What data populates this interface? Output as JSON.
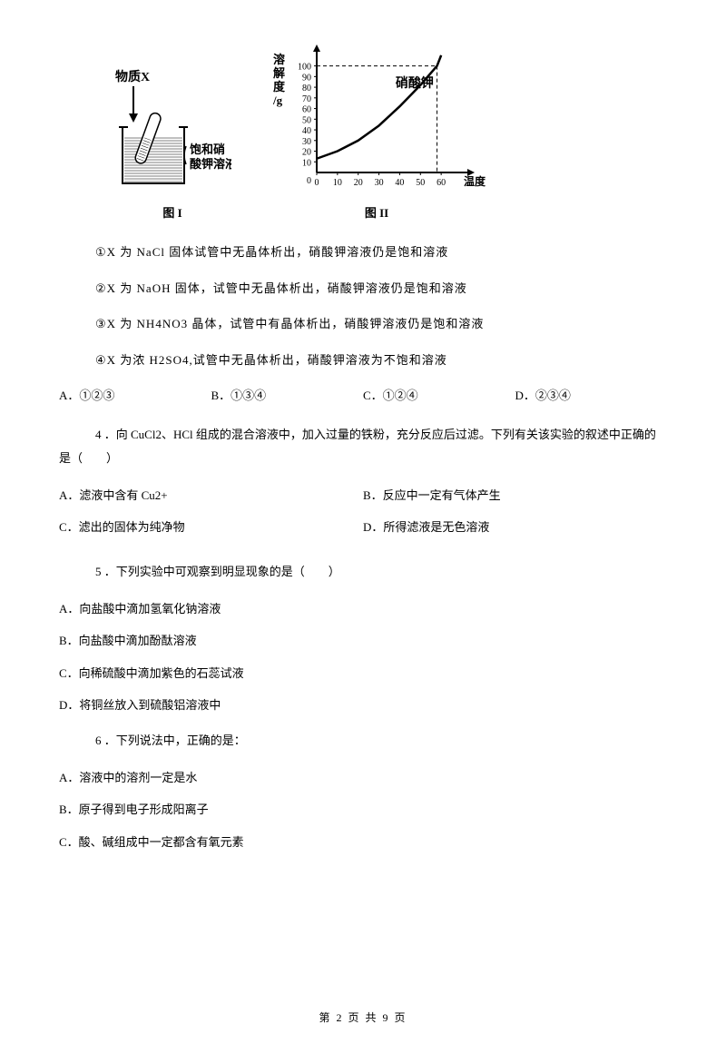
{
  "figure1": {
    "label_wuzhix": "物质X",
    "label_solution": "饱和硝酸钾溶液",
    "caption": "图 I",
    "colors": {
      "stroke": "#000000",
      "solution_fill": "#888888"
    }
  },
  "figure2": {
    "y_label_lines": [
      "溶",
      "解",
      "度",
      "/g"
    ],
    "x_label": "温度/℃",
    "curve_label": "硝酸钾",
    "caption": "图 II",
    "x_ticks": [
      0,
      10,
      20,
      30,
      40,
      50,
      60
    ],
    "y_ticks": [
      10,
      20,
      30,
      40,
      50,
      60,
      70,
      80,
      90,
      100
    ],
    "curve_points": [
      [
        0,
        13
      ],
      [
        10,
        20
      ],
      [
        20,
        30
      ],
      [
        30,
        44
      ],
      [
        40,
        62
      ],
      [
        50,
        82
      ],
      [
        58,
        100
      ],
      [
        60,
        110
      ]
    ],
    "dash_x": 58,
    "dash_y": 100,
    "plot": {
      "width": 160,
      "height": 150,
      "ox": 34,
      "oy": 150
    },
    "colors": {
      "stroke": "#000000",
      "bg": "#ffffff"
    }
  },
  "statements": {
    "s1": "①X 为 NaCl 固体试管中无晶体析出，硝酸钾溶液仍是饱和溶液",
    "s2": "②X 为 NaOH 固体，试管中无晶体析出，硝酸钾溶液仍是饱和溶液",
    "s3": "③X 为 NH4NO3 晶体，试管中有晶体析出，硝酸钾溶液仍是饱和溶液",
    "s4": "④X 为浓 H2SO4,试管中无晶体析出，硝酸钾溶液为不饱和溶液"
  },
  "q3_options": {
    "A": "A．①②③",
    "B": "B．①③④",
    "C": "C．①②④",
    "D": "D．②③④"
  },
  "q4": {
    "lead": "4 ．向 CuCl2、HCl 组成的混合溶液中，加入过量的铁粉，充分反应后过滤。下列有关该实验的叙述中正确的是（　　）",
    "opts": {
      "A": "A．滤液中含有 Cu2+",
      "B": "B．反应中一定有气体产生",
      "C": "C．滤出的固体为纯净物",
      "D": "D．所得滤液是无色溶液"
    }
  },
  "q5": {
    "lead": "5 ．下列实验中可观察到明显现象的是（　　）",
    "opts": {
      "A": "A．向盐酸中滴加氢氧化钠溶液",
      "B": "B．向盐酸中滴加酚酞溶液",
      "C": "C．向稀硫酸中滴加紫色的石蕊试液",
      "D": "D．将铜丝放入到硫酸铝溶液中"
    }
  },
  "q6": {
    "lead": "6 ．下列说法中，正确的是：",
    "opts": {
      "A": "A．溶液中的溶剂一定是水",
      "B": "B．原子得到电子形成阳离子",
      "C": "C．酸、碱组成中一定都含有氧元素"
    }
  },
  "footer": "第 2 页 共 9 页"
}
